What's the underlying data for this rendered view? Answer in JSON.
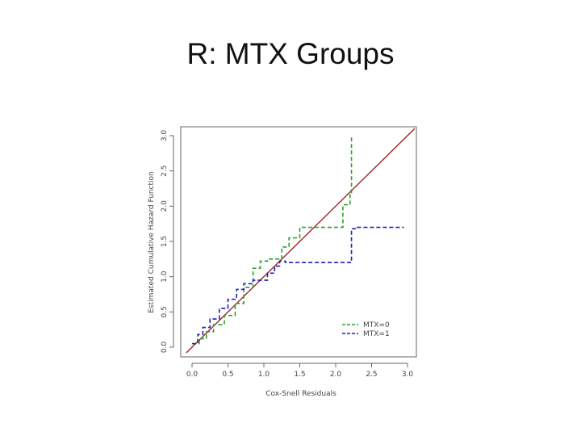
{
  "slide": {
    "title": "R: MTX Groups"
  },
  "chart_data": {
    "type": "line",
    "xlabel": "Cox-Snell Residuals",
    "ylabel": "Estimated Cumulative Hazard Function",
    "xlim": [
      0,
      3
    ],
    "ylim": [
      0,
      3
    ],
    "xticks": [
      "0.0",
      "0.5",
      "1.0",
      "1.5",
      "2.0",
      "2.5",
      "3.0"
    ],
    "yticks": [
      "0.0",
      "0.5",
      "1.0",
      "1.5",
      "2.0",
      "2.5",
      "3.0"
    ],
    "grid": false,
    "legend_position": "bottom-right",
    "reference_line": {
      "x": [
        -0.08,
        3.1
      ],
      "y": [
        -0.08,
        3.1
      ],
      "color": "#a01818"
    },
    "series": [
      {
        "name": "MTX=0",
        "color": "#2ca02c",
        "style": "dashed",
        "x": [
          0.0,
          0.1,
          0.2,
          0.3,
          0.45,
          0.6,
          0.72,
          0.85,
          0.95,
          1.05,
          1.25,
          1.35,
          1.5,
          2.1,
          2.2,
          2.22
        ],
        "y": [
          0.05,
          0.12,
          0.22,
          0.32,
          0.45,
          0.62,
          0.85,
          1.12,
          1.22,
          1.25,
          1.42,
          1.55,
          1.7,
          2.02,
          2.18,
          3.0
        ]
      },
      {
        "name": "MTX=1",
        "color": "#1f1fb4",
        "style": "dashed",
        "x": [
          0.0,
          0.08,
          0.15,
          0.25,
          0.38,
          0.5,
          0.62,
          0.72,
          0.85,
          1.05,
          1.15,
          1.22,
          1.3,
          2.22,
          2.3,
          2.95
        ],
        "y": [
          0.05,
          0.18,
          0.28,
          0.4,
          0.55,
          0.68,
          0.82,
          0.9,
          0.95,
          1.05,
          1.15,
          1.22,
          1.2,
          1.68,
          1.7,
          1.7
        ]
      }
    ]
  }
}
